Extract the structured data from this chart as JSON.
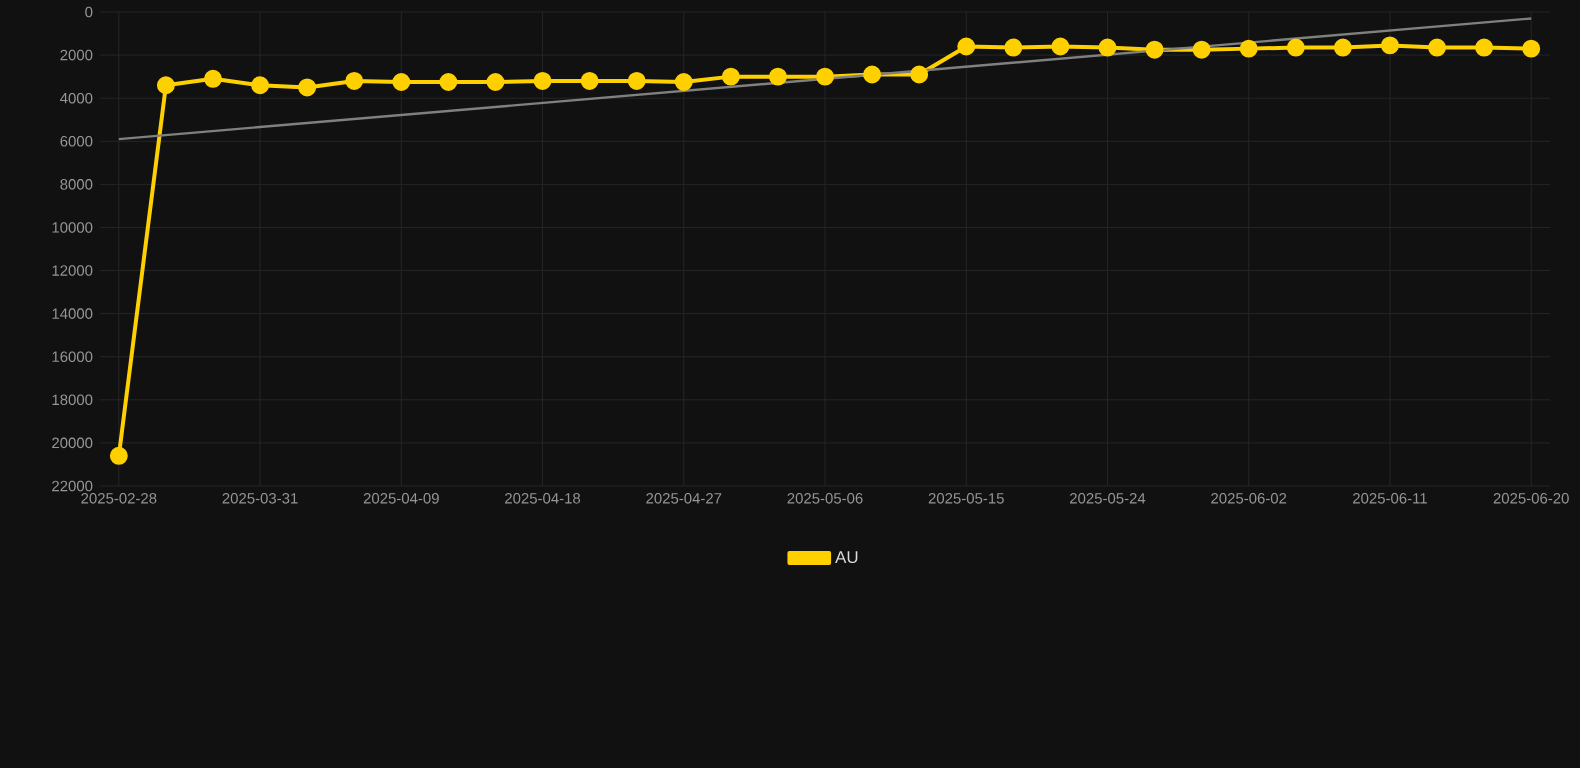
{
  "chart_data": {
    "type": "line",
    "categories": [
      "2025-02-28",
      null,
      null,
      "2025-03-31",
      null,
      null,
      "2025-04-09",
      null,
      null,
      "2025-04-18",
      null,
      null,
      "2025-04-27",
      null,
      null,
      "2025-05-06",
      null,
      null,
      "2025-05-15",
      null,
      null,
      "2025-05-24",
      null,
      null,
      "2025-06-02",
      null,
      null,
      "2025-06-11",
      null,
      null,
      "2025-06-20"
    ],
    "series": [
      {
        "name": "AU",
        "color": "#ffd000",
        "marker": "circle",
        "values": [
          20600,
          3400,
          3100,
          3400,
          3500,
          3200,
          3250,
          3250,
          3250,
          3200,
          3200,
          3200,
          3250,
          3000,
          3000,
          3000,
          2900,
          2900,
          1600,
          1650,
          1600,
          1650,
          1750,
          1750,
          1700,
          1650,
          1650,
          1550,
          1650,
          1650,
          1700
        ]
      },
      {
        "type": "line",
        "color": "#808080",
        "marker": "none",
        "values": [
          5900,
          null,
          null,
          null,
          null,
          null,
          null,
          null,
          null,
          null,
          null,
          null,
          null,
          null,
          null,
          null,
          null,
          null,
          null,
          null,
          null,
          null,
          null,
          null,
          null,
          null,
          null,
          null,
          null,
          null,
          300
        ]
      }
    ],
    "ylim": [
      22000,
      0
    ],
    "yticks": [
      0,
      2000,
      4000,
      6000,
      8000,
      10000,
      12000,
      14000,
      16000,
      18000,
      20000,
      22000
    ],
    "grid": true,
    "legend": "bottom"
  }
}
